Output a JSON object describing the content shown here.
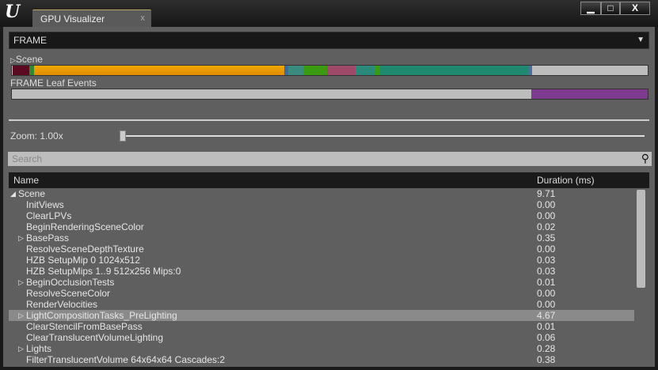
{
  "window": {
    "logo": "U",
    "tab_title": "GPU Visualizer",
    "tab_close": "x",
    "minimize": "▁",
    "maximize": "□",
    "close": "X"
  },
  "dropdown": {
    "value": "FRAME",
    "arrow": "▼"
  },
  "scene_bar": {
    "label": "Scene",
    "expander": "▷",
    "colors": [
      "#5c0a22",
      "#2f8a2f",
      "#f0a000",
      "#3a6aa0",
      "#3a8a80",
      "#3a9a10",
      "#a04a6a",
      "#2a8a7a",
      "#3a9a10",
      "#1f8a70",
      "#4a70a0",
      "#bdbdbd"
    ]
  },
  "leaf_bar": {
    "label": "FRAME Leaf Events",
    "colors": [
      "#bdbdbd",
      "#7e3a8e"
    ]
  },
  "zoom": {
    "label": "Zoom: 1.00x",
    "value": 1.0
  },
  "search": {
    "placeholder": "Search",
    "icon": "search-icon"
  },
  "table": {
    "columns": [
      "Name",
      "Duration (ms)"
    ],
    "rows": [
      {
        "name": "Scene",
        "duration": "9.71",
        "toggle": "◢",
        "top": true
      },
      {
        "name": "InitViews",
        "duration": "0.00"
      },
      {
        "name": "ClearLPVs",
        "duration": "0.00"
      },
      {
        "name": "BeginRenderingSceneColor",
        "duration": "0.02"
      },
      {
        "name": "BasePass",
        "duration": "0.35",
        "toggle": "▷"
      },
      {
        "name": "ResolveSceneDepthTexture",
        "duration": "0.00"
      },
      {
        "name": "HZB SetupMip 0 1024x512",
        "duration": "0.03"
      },
      {
        "name": "HZB SetupMips 1..9 512x256 Mips:0",
        "duration": "0.03"
      },
      {
        "name": "BeginOcclusionTests",
        "duration": "0.01",
        "toggle": "▷"
      },
      {
        "name": "ResolveSceneColor",
        "duration": "0.00"
      },
      {
        "name": "RenderVelocities",
        "duration": "0.00"
      },
      {
        "name": "LightCompositionTasks_PreLighting",
        "duration": "4.67",
        "toggle": "▷",
        "selected": true
      },
      {
        "name": "ClearStencilFromBasePass",
        "duration": "0.01"
      },
      {
        "name": "ClearTranslucentVolumeLighting",
        "duration": "0.06"
      },
      {
        "name": "Lights",
        "duration": "0.28",
        "toggle": "▷"
      },
      {
        "name": "FilterTranslucentVolume 64x64x64 Cascades:2",
        "duration": "0.38"
      }
    ]
  }
}
